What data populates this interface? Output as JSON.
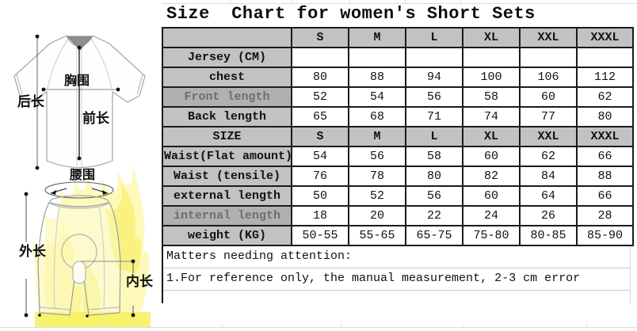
{
  "title": "Size  Chart for women's Short Sets",
  "diagram": {
    "jersey": {
      "back_length": "后长",
      "chest": "胸围",
      "front_length": "前长"
    },
    "shorts": {
      "waist": "腰围",
      "external_length": "外长",
      "internal_length": "内长"
    }
  },
  "table": {
    "sizes": [
      "S",
      "M",
      "L",
      "XL",
      "XXL",
      "XXXL"
    ],
    "rows": [
      {
        "label": "Jersey (CM)",
        "type": "section",
        "values": [
          "",
          "",
          "",
          "",
          "",
          ""
        ]
      },
      {
        "label": "chest",
        "values": [
          "80",
          "88",
          "94",
          "100",
          "106",
          "112"
        ]
      },
      {
        "label": "Front length",
        "muted": true,
        "values": [
          "52",
          "54",
          "56",
          "58",
          "60",
          "62"
        ]
      },
      {
        "label": "Back length",
        "values": [
          "65",
          "68",
          "71",
          "74",
          "77",
          "80"
        ]
      },
      {
        "label": "SIZE",
        "type": "header",
        "values": [
          "S",
          "M",
          "L",
          "XL",
          "XXL",
          "XXXL"
        ]
      },
      {
        "label": "Waist(Flat amount)",
        "values": [
          "54",
          "56",
          "58",
          "60",
          "62",
          "66"
        ]
      },
      {
        "label": "Waist (tensile)",
        "values": [
          "76",
          "78",
          "80",
          "82",
          "84",
          "88"
        ]
      },
      {
        "label": "external length",
        "values": [
          "50",
          "52",
          "56",
          "60",
          "64",
          "66"
        ]
      },
      {
        "label": "internal length",
        "muted": true,
        "values": [
          "18",
          "20",
          "22",
          "24",
          "26",
          "28"
        ]
      },
      {
        "label": "weight (KG)",
        "values": [
          "50-55",
          "55-65",
          "65-75",
          "75-80",
          "80-85",
          "85-90"
        ]
      }
    ],
    "notes": [
      "Matters needing attention:",
      "1.For reference only, the manual measurement, 2-3 cm error"
    ]
  },
  "colors": {
    "header_gray": "#c2c2c2",
    "muted_gray": "#b0b0b0",
    "flame_yellow": "#f7ef55",
    "border_dark": "#1b1b1b"
  }
}
